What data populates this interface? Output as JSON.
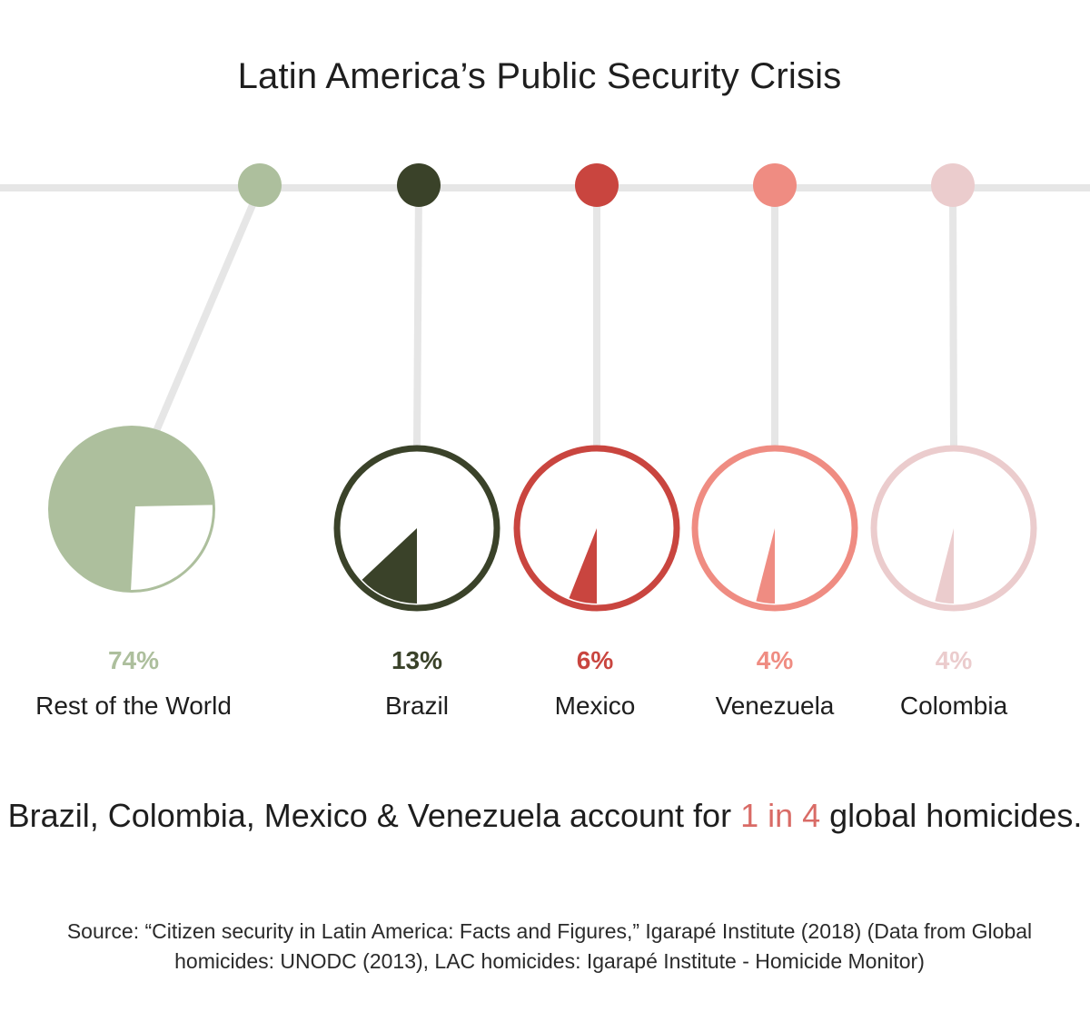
{
  "title": "Latin America’s Public Security Crisis",
  "chart_data": {
    "type": "pie",
    "title": "Latin America’s Public Security Crisis",
    "unit": "% of global homicides",
    "series": [
      {
        "name": "Rest of the World",
        "value": 74,
        "label": "74%",
        "color": "#adbf9d"
      },
      {
        "name": "Brazil",
        "value": 13,
        "label": "13%",
        "color": "#3a4229"
      },
      {
        "name": "Mexico",
        "value": 6,
        "label": "6%",
        "color": "#c9453f"
      },
      {
        "name": "Venezuela",
        "value": 4,
        "label": "4%",
        "color": "#ef8c82"
      },
      {
        "name": "Colombia",
        "value": 4,
        "label": "4%",
        "color": "#ebcccd"
      }
    ]
  },
  "headline": {
    "before": "Brazil, Colombia, Mexico & Venezuela account for ",
    "highlight": "1 in 4",
    "after": " global homicides."
  },
  "source": {
    "line1": "Source: “Citizen security in Latin America: Facts and Figures,” Igarapé Institute (2018) (Data from Global",
    "line2": "homicides: UNODC (2013), LAC homicides: Igarapé Institute - Homicide Monitor)"
  },
  "colors": {
    "track": "#e6e6e6",
    "text": "#1e1e1e",
    "highlight": "#d96b66"
  }
}
